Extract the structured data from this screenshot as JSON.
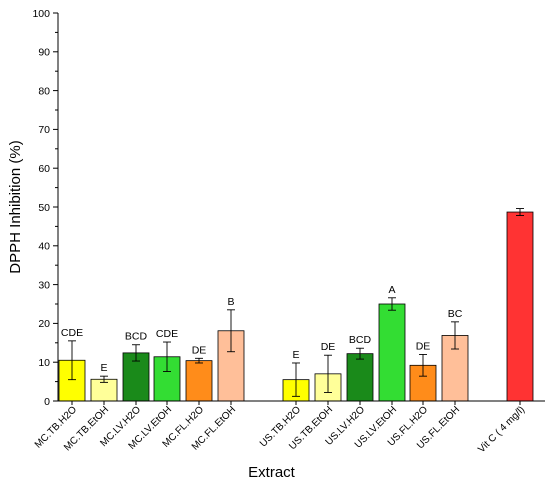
{
  "chart_data": {
    "type": "bar",
    "xlabel": "Extract",
    "ylabel": "DPPH Inhibition (%)",
    "ylim": [
      0,
      100
    ],
    "yticks": [
      0,
      10,
      20,
      30,
      40,
      50,
      60,
      70,
      80,
      90,
      100
    ],
    "grid": false,
    "error_bars": true,
    "categories": [
      "MC.TB.H2O",
      "MC.TB.EtOH",
      "MC.LV.H2O",
      "MC.LV.EtOH",
      "MC.FL.H2O",
      "MC.FL.EtOH",
      "US.TB.H2O",
      "US.TB.EtOH",
      "US.LV.H2O",
      "US.LV.EtOH",
      "US.FL.H2O",
      "US.FL.EtOH",
      "Vit C ( 4 mg/l)"
    ],
    "values": [
      10.5,
      5.6,
      12.4,
      11.4,
      10.4,
      18.1,
      5.5,
      7.0,
      12.2,
      25.0,
      9.2,
      16.9,
      48.7
    ],
    "errors": [
      5.0,
      0.8,
      2.1,
      3.8,
      0.6,
      5.4,
      4.3,
      4.8,
      1.4,
      1.6,
      2.8,
      3.5,
      0.9
    ],
    "significance": [
      "CDE",
      "E",
      "BCD",
      "CDE",
      "DE",
      "B",
      "E",
      "DE",
      "BCD",
      "A",
      "DE",
      "BC",
      ""
    ],
    "colors": [
      "#ffff00",
      "#ffff99",
      "#1a8a1a",
      "#33dd33",
      "#ff8c1a",
      "#ffbf99",
      "#ffff00",
      "#ffff99",
      "#1a8a1a",
      "#33dd33",
      "#ff8c1a",
      "#ffbf99",
      "#ff3333"
    ]
  }
}
